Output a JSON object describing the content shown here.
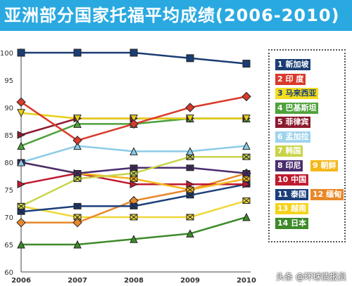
{
  "title": "亚洲部分国家托福平均成绩(2006-2010)",
  "watermark": "头条 @环球情报员",
  "chart_data": {
    "type": "line",
    "title": "亚洲部分国家托福平均成绩(2006-2010)",
    "x": [
      "2006",
      "2007",
      "2008",
      "2009",
      "2010"
    ],
    "ylim": [
      60,
      100
    ],
    "yticks": [
      60,
      65,
      70,
      75,
      80,
      85,
      90,
      95,
      100
    ],
    "grid": false,
    "legend_position": "right",
    "series": [
      {
        "name": "1 新加坡",
        "color": "#1a3d73",
        "marker": "square",
        "values": [
          100,
          100,
          100,
          99,
          98
        ]
      },
      {
        "name": "2 印度",
        "color": "#d93a2b",
        "marker": "diamond",
        "values": [
          91,
          84,
          87,
          90,
          92
        ]
      },
      {
        "name": "3 马来西亚",
        "color": "#e6cf17",
        "marker": "triangle-down",
        "values": [
          89,
          88,
          88,
          88,
          88
        ]
      },
      {
        "name": "4 巴基斯坦",
        "color": "#4ea23b",
        "marker": "triangle-up",
        "values": [
          83,
          87,
          87,
          88,
          88
        ]
      },
      {
        "name": "5 菲律宾",
        "color": "#8c1a2e",
        "marker": "triangle-right",
        "values": [
          85,
          88,
          88,
          88,
          88
        ]
      },
      {
        "name": "6 孟加拉",
        "color": "#8ccbe8",
        "marker": "triangle-up",
        "values": [
          80,
          83,
          82,
          82,
          83
        ]
      },
      {
        "name": "7 韩国",
        "color": "#c9d44a",
        "marker": "x",
        "values": [
          72,
          77,
          78,
          81,
          81
        ]
      },
      {
        "name": "8 印尼",
        "color": "#4a2d6e",
        "marker": "x",
        "values": [
          80,
          78,
          79,
          79,
          78
        ]
      },
      {
        "name": "9 朝鲜",
        "color": "#f5b71a",
        "marker": "x",
        "values": [
          80,
          78,
          77,
          75,
          77
        ]
      },
      {
        "name": "10 中国",
        "color": "#bf1a2f",
        "marker": "triangle-right",
        "values": [
          76,
          78,
          76,
          76,
          76
        ]
      },
      {
        "name": "11 泰国",
        "color": "#1c3f7a",
        "marker": "x",
        "values": [
          71,
          72,
          72,
          74,
          76
        ]
      },
      {
        "name": "12 缅甸",
        "color": "#e8882a",
        "marker": "diamond",
        "values": [
          69,
          69,
          73,
          75,
          78
        ]
      },
      {
        "name": "13 越南",
        "color": "#f0d93a",
        "marker": "x",
        "values": [
          72,
          70,
          70,
          70,
          73
        ]
      },
      {
        "name": "14 日本",
        "color": "#3d8a2a",
        "marker": "triangle-up",
        "values": [
          65,
          65,
          66,
          67,
          70
        ]
      }
    ]
  },
  "legend_rows": [
    [
      {
        "label": "1 新加坡",
        "bg": "#1a3d73",
        "fg": "#ffffff"
      }
    ],
    [
      {
        "label": "2 印 度",
        "bg": "#d93a2b",
        "fg": "#ffffff"
      }
    ],
    [
      {
        "label": "3 马来西亚",
        "bg": "#f2dd1f",
        "fg": "#1a3d73"
      }
    ],
    [
      {
        "label": "4 巴基斯坦",
        "bg": "#4ea23b",
        "fg": "#ffffff"
      }
    ],
    [
      {
        "label": "5 菲律宾",
        "bg": "#8c1a2e",
        "fg": "#ffffff"
      }
    ],
    [
      {
        "label": "6 孟加拉",
        "bg": "#9fd3ee",
        "fg": "#ffffff"
      }
    ],
    [
      {
        "label": "7 韩国",
        "bg": "#c9d44a",
        "fg": "#ffffff"
      }
    ],
    [
      {
        "label": "8 印尼",
        "bg": "#4a2d6e",
        "fg": "#ffffff"
      },
      {
        "label": "9 朝鲜",
        "bg": "#f5b71a",
        "fg": "#ffffff"
      }
    ],
    [
      {
        "label": "10 中国",
        "bg": "#bf1a2f",
        "fg": "#ffffff"
      }
    ],
    [
      {
        "label": "11 泰国",
        "bg": "#1c3f7a",
        "fg": "#ffffff"
      },
      {
        "label": "12 缅甸",
        "bg": "#e8882a",
        "fg": "#ffffff"
      }
    ],
    [
      {
        "label": "13 越南",
        "bg": "#f5d21a",
        "fg": "#ffffff"
      }
    ],
    [
      {
        "label": "14 日本",
        "bg": "#3d8a2a",
        "fg": "#ffffff"
      }
    ]
  ]
}
